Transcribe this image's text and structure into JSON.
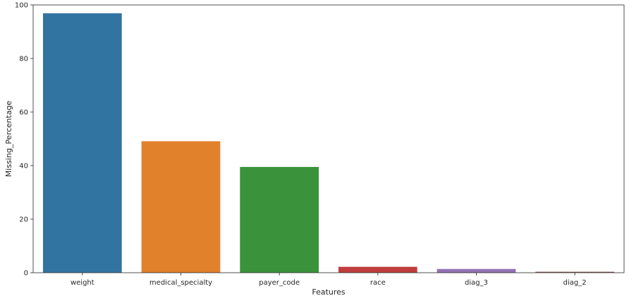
{
  "chart_data": {
    "type": "bar",
    "categories": [
      "weight",
      "medical_specialty",
      "payer_code",
      "race",
      "diag_3",
      "diag_2"
    ],
    "values": [
      96.9,
      49.1,
      39.5,
      2.2,
      1.4,
      0.35
    ],
    "colors": [
      "#3274a1",
      "#e1812c",
      "#3a923a",
      "#c03d3e",
      "#9372b2",
      "#845b53"
    ],
    "xlabel": "Features",
    "ylabel": "Missing_Percentage",
    "ylim": [
      0,
      100
    ],
    "yticks": [
      0,
      20,
      40,
      60,
      80,
      100
    ],
    "ytick_labels": [
      "0",
      "20",
      "40",
      "60",
      "80",
      "100"
    ],
    "grid": false,
    "legend": "none"
  }
}
